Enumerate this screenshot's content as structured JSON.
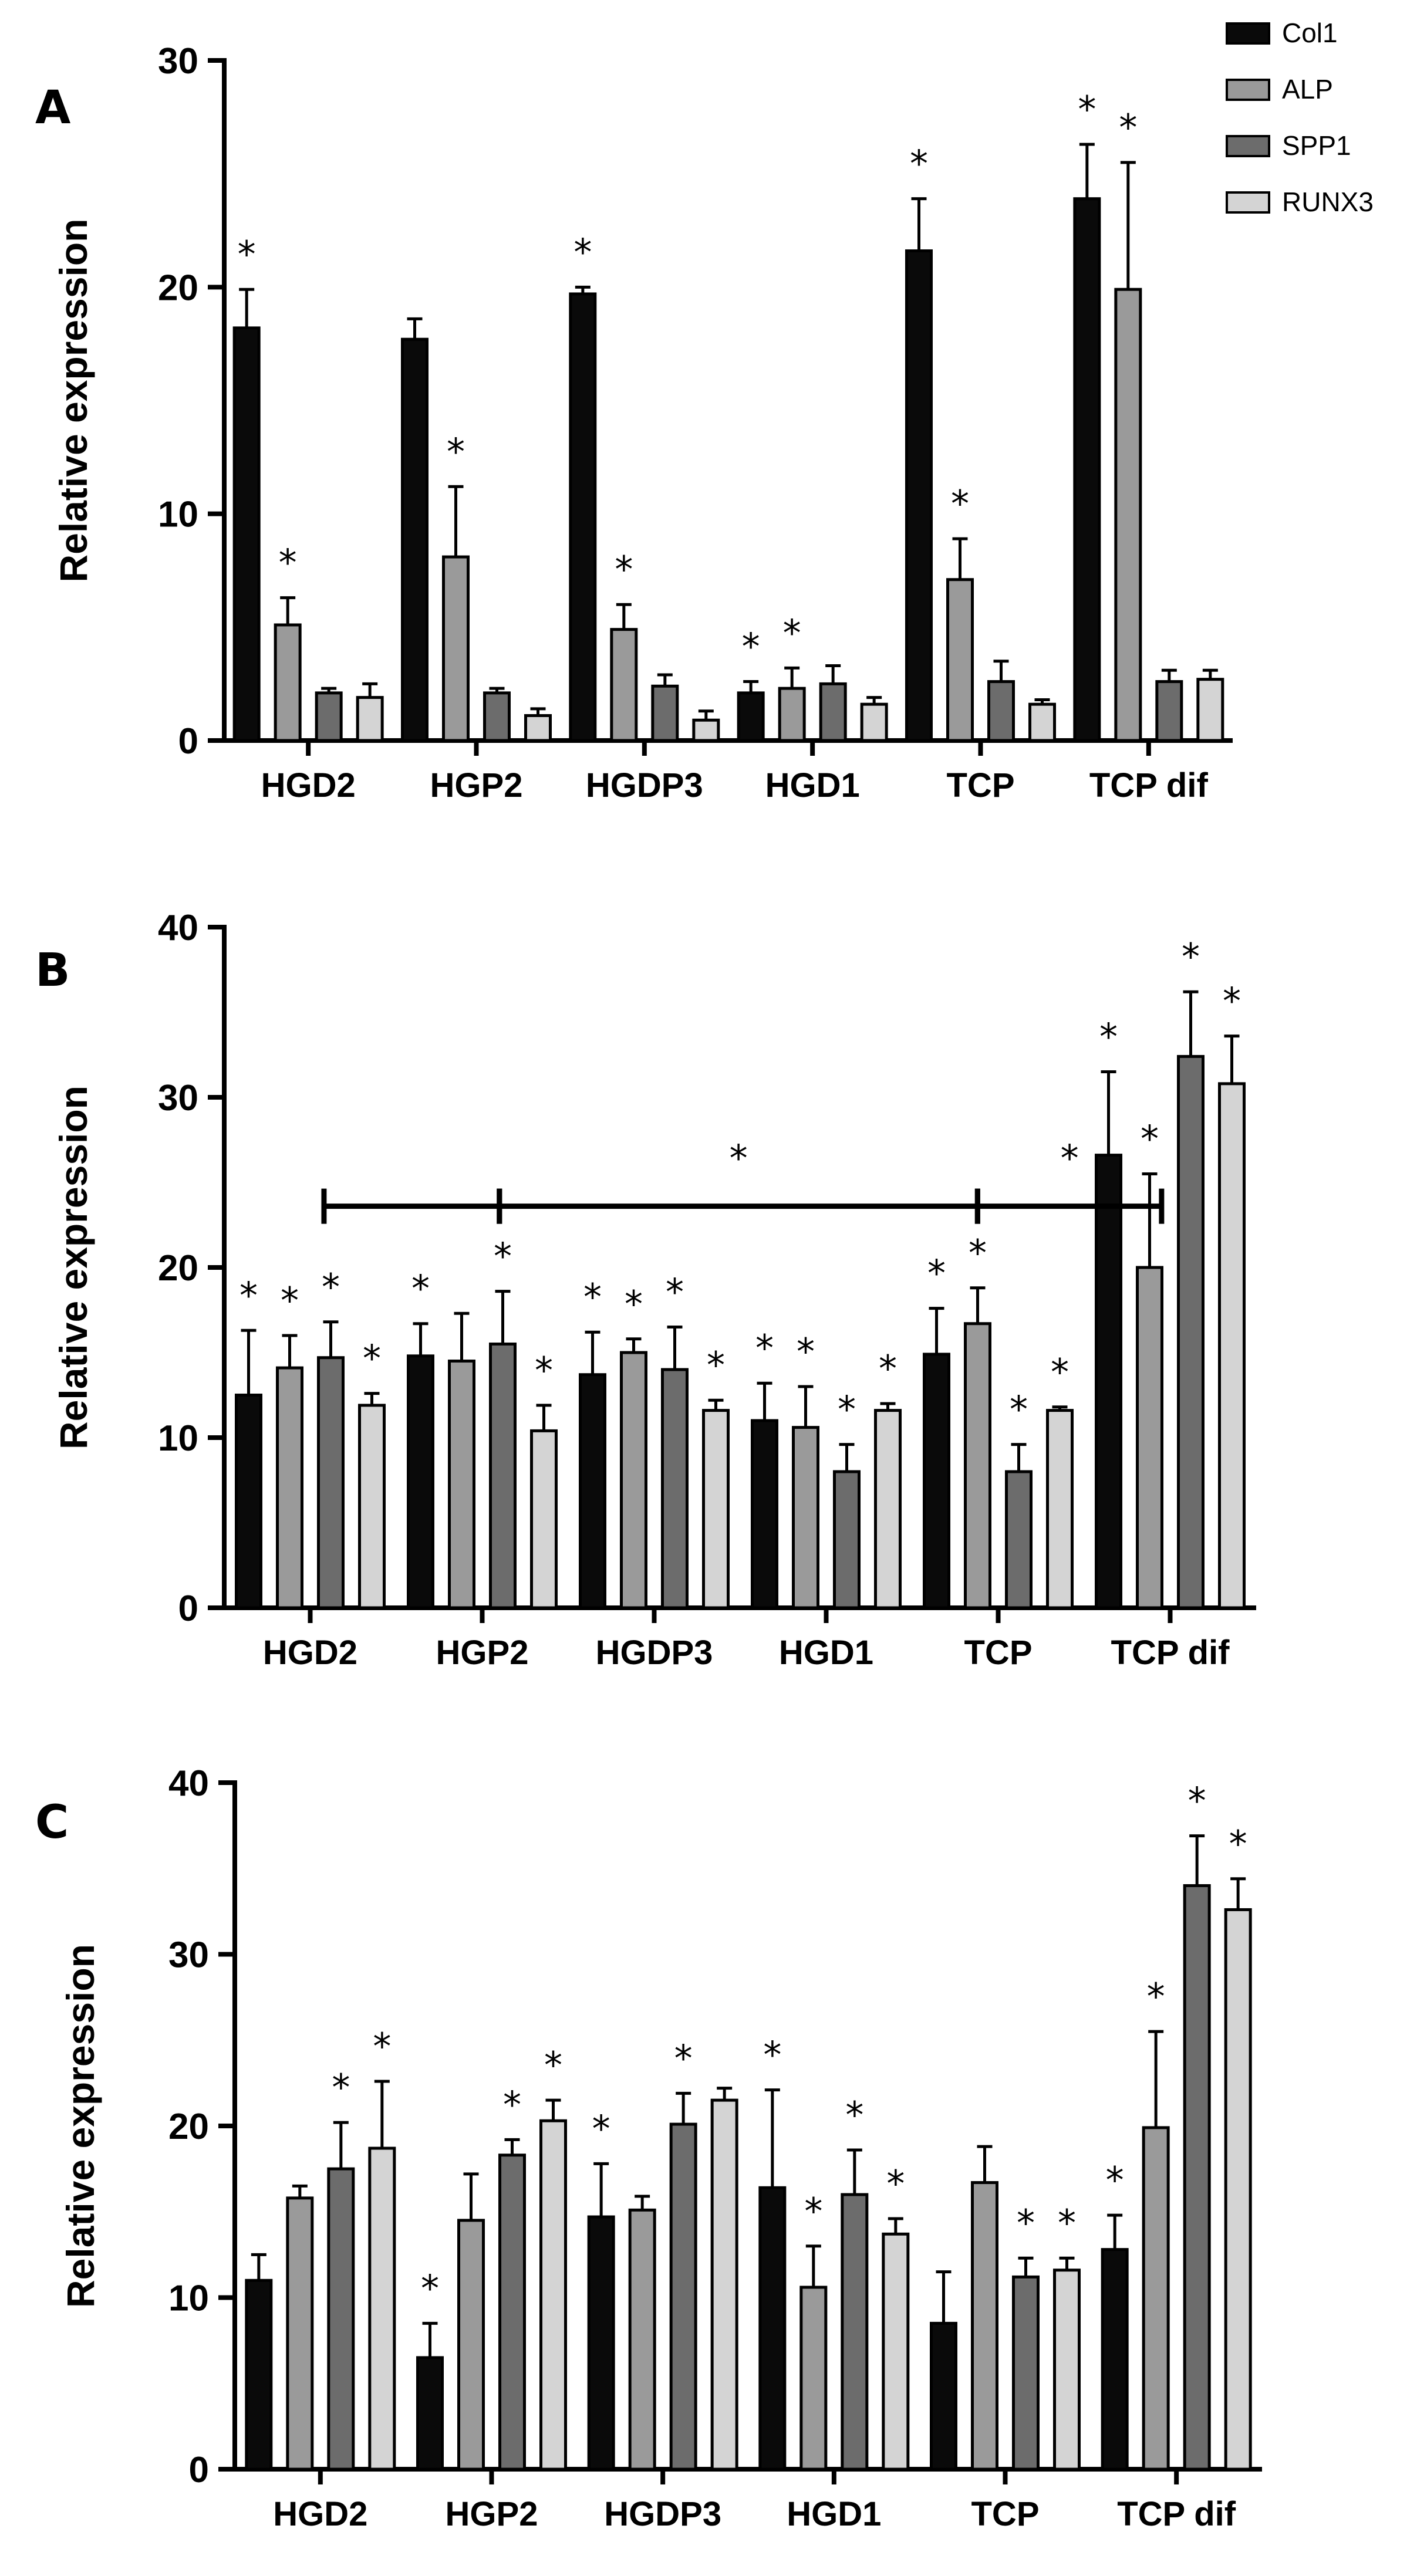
{
  "legend": [
    {
      "name": "Col1",
      "color": "#0a0a0a"
    },
    {
      "name": "ALP",
      "color": "#9a9a9a"
    },
    {
      "name": "SPP1",
      "color": "#6c6c6c"
    },
    {
      "name": "RUNX3",
      "color": "#d4d4d4"
    }
  ],
  "sig_marker": "*",
  "chart_data": [
    {
      "type": "bar",
      "panel": "A",
      "ylabel": "Relative expression",
      "ylim": [
        0,
        30
      ],
      "yticks": [
        0,
        10,
        20,
        30
      ],
      "categories": [
        "HGD2",
        "HGP2",
        "HGDP3",
        "HGD1",
        "TCP",
        "TCP dif"
      ],
      "series": [
        {
          "name": "Col1",
          "values": [
            18.2,
            17.7,
            19.7,
            2.1,
            21.6,
            23.9
          ],
          "errors": [
            1.7,
            0.9,
            0.3,
            0.5,
            2.3,
            2.4
          ],
          "sig": [
            true,
            false,
            true,
            true,
            true,
            true
          ]
        },
        {
          "name": "ALP",
          "values": [
            5.1,
            8.1,
            4.9,
            2.3,
            7.1,
            19.9
          ],
          "errors": [
            1.2,
            3.1,
            1.1,
            0.9,
            1.8,
            5.6
          ],
          "sig": [
            true,
            true,
            true,
            true,
            true,
            true
          ]
        },
        {
          "name": "SPP1",
          "values": [
            2.1,
            2.1,
            2.4,
            2.5,
            2.6,
            2.6
          ],
          "errors": [
            0.2,
            0.2,
            0.5,
            0.8,
            0.9,
            0.5
          ],
          "sig": [
            false,
            false,
            false,
            false,
            false,
            false
          ]
        },
        {
          "name": "RUNX3",
          "values": [
            1.9,
            1.1,
            0.9,
            1.6,
            1.6,
            2.7
          ],
          "errors": [
            0.6,
            0.3,
            0.4,
            0.3,
            0.2,
            0.4
          ],
          "sig": [
            false,
            false,
            false,
            false,
            false,
            false
          ]
        }
      ]
    },
    {
      "type": "bar",
      "panel": "B",
      "ylabel": "Relative expression",
      "ylim": [
        0,
        40
      ],
      "yticks": [
        0,
        10,
        20,
        30,
        40
      ],
      "categories": [
        "HGD2",
        "HGP2",
        "HGDP3",
        "HGD1",
        "TCP",
        "TCP dif"
      ],
      "series": [
        {
          "name": "Col1",
          "values": [
            12.5,
            14.8,
            13.7,
            11.0,
            14.9,
            26.6
          ],
          "errors": [
            3.8,
            1.9,
            2.5,
            2.2,
            2.7,
            4.9
          ],
          "sig": [
            true,
            true,
            true,
            true,
            true,
            true
          ]
        },
        {
          "name": "ALP",
          "values": [
            14.1,
            14.5,
            15.0,
            10.6,
            16.7,
            20.0
          ],
          "errors": [
            1.9,
            2.8,
            0.8,
            2.4,
            2.1,
            5.5
          ],
          "sig": [
            true,
            false,
            true,
            true,
            true,
            true
          ]
        },
        {
          "name": "SPP1",
          "values": [
            14.7,
            15.5,
            14.0,
            8.0,
            8.0,
            32.4
          ],
          "errors": [
            2.1,
            3.1,
            2.5,
            1.6,
            1.6,
            3.8
          ],
          "sig": [
            true,
            true,
            true,
            true,
            true,
            true
          ]
        },
        {
          "name": "RUNX3",
          "values": [
            11.9,
            10.4,
            11.6,
            11.6,
            11.6,
            30.8
          ],
          "errors": [
            0.7,
            1.5,
            0.6,
            0.4,
            0.2,
            2.8
          ],
          "sig": [
            true,
            true,
            true,
            true,
            true,
            true
          ]
        }
      ],
      "brackets": [
        {
          "from_x": 0.58,
          "to_x": 1.6,
          "y": 23.6,
          "star": false
        },
        {
          "from_x": 1.6,
          "to_x": 4.38,
          "y": 23.6,
          "star": true
        },
        {
          "from_x": 4.38,
          "to_x": 5.45,
          "y": 23.6,
          "star": true
        }
      ]
    },
    {
      "type": "bar",
      "panel": "C",
      "ylabel": "Relative expression",
      "ylim": [
        0,
        40
      ],
      "yticks": [
        0,
        10,
        20,
        30,
        40
      ],
      "categories": [
        "HGD2",
        "HGP2",
        "HGDP3",
        "HGD1",
        "TCP",
        "TCP dif"
      ],
      "series": [
        {
          "name": "Col1",
          "values": [
            11.0,
            6.5,
            14.7,
            16.4,
            8.5,
            12.8
          ],
          "errors": [
            1.5,
            2.0,
            3.1,
            5.7,
            3.0,
            2.0
          ],
          "sig": [
            false,
            true,
            true,
            true,
            false,
            true
          ]
        },
        {
          "name": "ALP",
          "values": [
            15.8,
            14.5,
            15.1,
            10.6,
            16.7,
            19.9
          ],
          "errors": [
            0.7,
            2.7,
            0.8,
            2.4,
            2.1,
            5.6
          ],
          "sig": [
            false,
            false,
            false,
            true,
            false,
            true
          ]
        },
        {
          "name": "SPP1",
          "values": [
            17.5,
            18.3,
            20.1,
            16.0,
            11.2,
            34.0
          ],
          "errors": [
            2.7,
            0.9,
            1.8,
            2.6,
            1.1,
            2.9
          ],
          "sig": [
            true,
            true,
            true,
            true,
            true,
            true
          ]
        },
        {
          "name": "RUNX3",
          "values": [
            18.7,
            20.3,
            21.5,
            13.7,
            11.6,
            32.6
          ],
          "errors": [
            3.9,
            1.2,
            0.7,
            0.9,
            0.7,
            1.8
          ],
          "sig": [
            true,
            true,
            false,
            true,
            true,
            true
          ]
        }
      ]
    }
  ]
}
